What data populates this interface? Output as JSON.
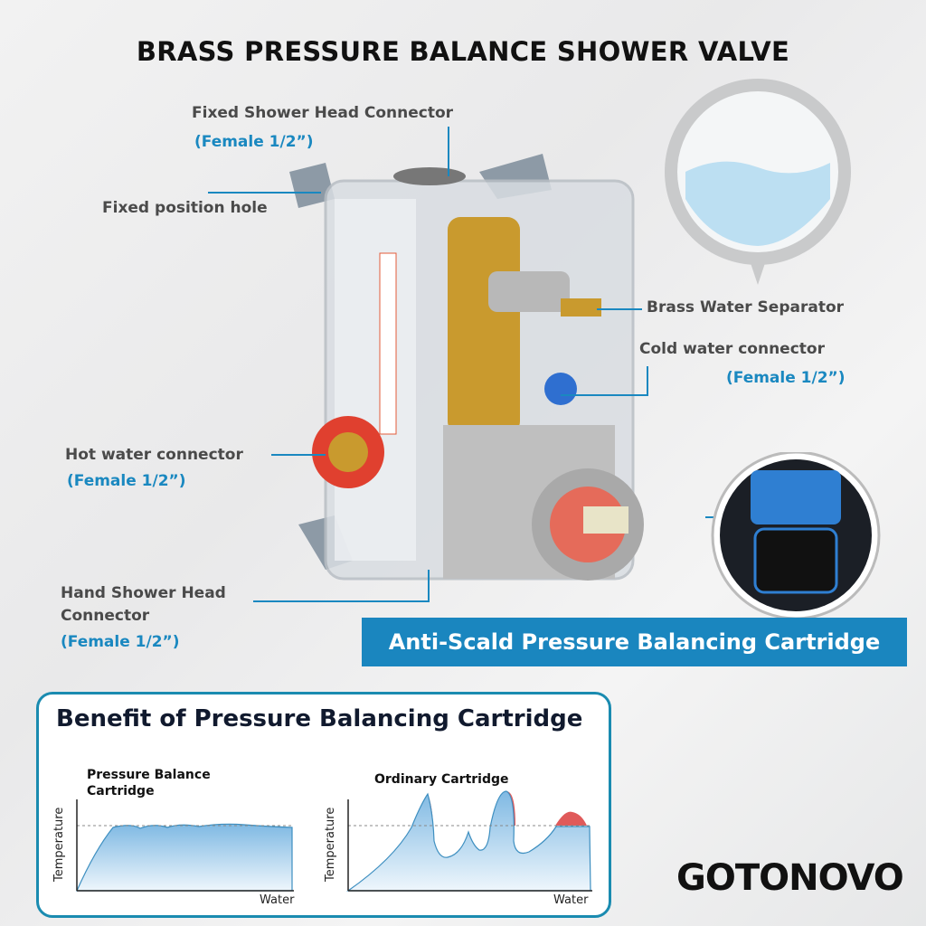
{
  "title": "BRASS PRESSURE BALANCE SHOWER VALVE",
  "callouts": {
    "fixed_head": {
      "label": "Fixed Shower Head Connector",
      "spec": "(Female 1/2”)"
    },
    "fixed_hole": {
      "label": "Fixed position hole"
    },
    "separator": {
      "label": "Brass Water Separator"
    },
    "cold": {
      "label": "Cold water connector",
      "spec": "(Female 1/2”)"
    },
    "hot": {
      "label": "Hot water connector",
      "spec": "(Female 1/2”)"
    },
    "hand": {
      "label_line1": "Hand Shower Head",
      "label_line2": "Connector",
      "spec": "(Female 1/2”)"
    }
  },
  "banner": "Anti-Scald Pressure Balancing Cartridge",
  "benefit": {
    "title": "Benefit of Pressure Balancing Cartridge",
    "left": {
      "title_line1": "Pressure Balance",
      "title_line2": "Cartridge",
      "ylabel": "Temperature",
      "xlabel": "Water"
    },
    "right": {
      "title": "Ordinary Cartridge",
      "ylabel": "Temperature",
      "xlabel": "Water"
    }
  },
  "brand": "GOTONOVO",
  "colors": {
    "accent": "#1a86bf",
    "overshoot": "#e05a5a"
  }
}
